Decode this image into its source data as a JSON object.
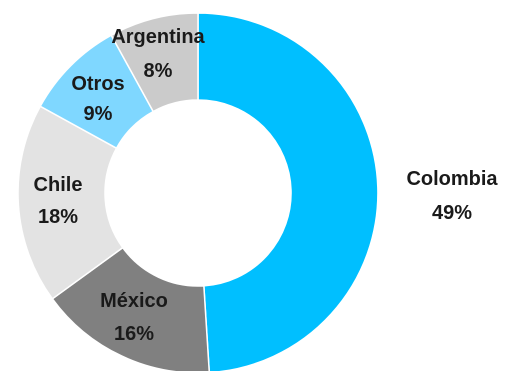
{
  "chart_data": {
    "type": "pie",
    "donut": true,
    "start_angle": 0,
    "direction": "clockwise",
    "title": "",
    "legend": "none",
    "slices": [
      {
        "label": "Colombia",
        "value": 49,
        "value_label": "49%",
        "color": "#00bfff"
      },
      {
        "label": "México",
        "value": 16,
        "value_label": "16%",
        "color": "#808080"
      },
      {
        "label": "Chile",
        "value": 18,
        "value_label": "18%",
        "color": "#e3e3e3"
      },
      {
        "label": "Otros",
        "value": 9,
        "value_label": "9%",
        "color": "#7fd7ff"
      },
      {
        "label": "Argentina",
        "value": 8,
        "value_label": "8%",
        "color": "#cbcbcb"
      }
    ]
  }
}
